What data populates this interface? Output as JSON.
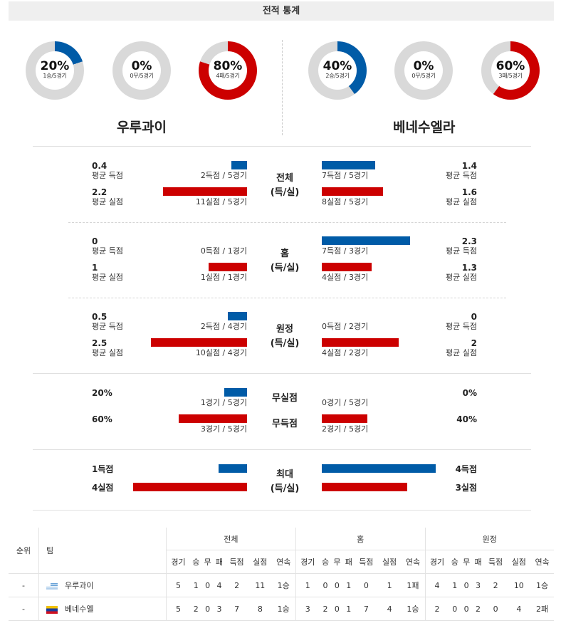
{
  "header": {
    "title": "전적 통계"
  },
  "colors": {
    "blue": "#005ba7",
    "red": "#cc0000",
    "grey": "#d9d9d9"
  },
  "donuts": {
    "home": [
      {
        "pct": "20%",
        "sub": "1승/5경기",
        "fraction": 0.2,
        "color": "blue"
      },
      {
        "pct": "0%",
        "sub": "0무/5경기",
        "fraction": 0,
        "color": "grey"
      },
      {
        "pct": "80%",
        "sub": "4패/5경기",
        "fraction": 0.8,
        "color": "red"
      }
    ],
    "away": [
      {
        "pct": "40%",
        "sub": "2승/5경기",
        "fraction": 0.4,
        "color": "blue"
      },
      {
        "pct": "0%",
        "sub": "0무/5경기",
        "fraction": 0,
        "color": "grey"
      },
      {
        "pct": "60%",
        "sub": "3패/5경기",
        "fraction": 0.6,
        "color": "red"
      }
    ]
  },
  "teams": {
    "home": "우루과이",
    "away": "베네수엘라"
  },
  "labels": {
    "avg_scored": "평균 득점",
    "avg_conceded": "평균 실점"
  },
  "sections": {
    "overall": {
      "center": [
        "전체",
        "(득/실)"
      ],
      "home": {
        "scored": "0.4",
        "conceded": "2.2",
        "scored_detail": "2득점 / 5경기",
        "conceded_detail": "11실점 / 5경기",
        "scored_ratio": 0.4,
        "conceded_ratio": 2.2
      },
      "away": {
        "scored": "1.4",
        "conceded": "1.6",
        "scored_detail": "7득점 / 5경기",
        "conceded_detail": "8실점 / 5경기",
        "scored_ratio": 1.4,
        "conceded_ratio": 1.6
      }
    },
    "home_games": {
      "center": [
        "홈",
        "(득/실)"
      ],
      "home": {
        "scored": "0",
        "conceded": "1",
        "scored_detail": "0득점 / 1경기",
        "conceded_detail": "1실점 / 1경기",
        "scored_ratio": 0,
        "conceded_ratio": 1
      },
      "away": {
        "scored": "2.3",
        "conceded": "1.3",
        "scored_detail": "7득점 / 3경기",
        "conceded_detail": "4실점 / 3경기",
        "scored_ratio": 2.3,
        "conceded_ratio": 1.3
      }
    },
    "away_games": {
      "center": [
        "원정",
        "(득/실)"
      ],
      "home": {
        "scored": "0.5",
        "conceded": "2.5",
        "scored_detail": "2득점 / 4경기",
        "conceded_detail": "10실점 / 4경기",
        "scored_ratio": 0.5,
        "conceded_ratio": 2.5
      },
      "away": {
        "scored": "0",
        "conceded": "2",
        "scored_detail": "0득점 / 2경기",
        "conceded_detail": "4실점 / 2경기",
        "scored_ratio": 0,
        "conceded_ratio": 2
      }
    },
    "clean": {
      "center1": "무실점",
      "center2": "무득점",
      "home": {
        "clean_pct": "20%",
        "noscore_pct": "60%",
        "clean_detail": "1경기 / 5경기",
        "noscore_detail": "3경기 / 5경기",
        "clean_ratio": 0.2,
        "noscore_ratio": 0.6
      },
      "away": {
        "clean_pct": "0%",
        "noscore_pct": "40%",
        "clean_detail": "0경기 / 5경기",
        "noscore_detail": "2경기 / 5경기",
        "clean_ratio": 0,
        "noscore_ratio": 0.4
      }
    },
    "max": {
      "center": [
        "최대",
        "(득/실)"
      ],
      "home": {
        "scored": "1득점",
        "conceded": "4실점",
        "scored_ratio": 1,
        "conceded_ratio": 4
      },
      "away": {
        "scored": "4득점",
        "conceded": "3실점",
        "scored_ratio": 4,
        "conceded_ratio": 3
      }
    }
  },
  "table": {
    "col_rank": "순위",
    "col_team": "팀",
    "groups": [
      "전체",
      "홈",
      "원정"
    ],
    "sub_headers": [
      "경기",
      "승",
      "무",
      "패",
      "득점",
      "실점",
      "연속"
    ],
    "rows": [
      {
        "rank": "-",
        "team": "우루과이",
        "flag": "uruguay-flag",
        "overall": [
          "5",
          "1",
          "0",
          "4",
          "2",
          "11",
          "1승"
        ],
        "home": [
          "1",
          "0",
          "0",
          "1",
          "0",
          "1",
          "1패"
        ],
        "away": [
          "4",
          "1",
          "0",
          "3",
          "2",
          "10",
          "1승"
        ]
      },
      {
        "rank": "-",
        "team": "베네수엘",
        "flag": "venezuela-flag",
        "overall": [
          "5",
          "2",
          "0",
          "3",
          "7",
          "8",
          "1승"
        ],
        "home": [
          "3",
          "2",
          "0",
          "1",
          "7",
          "4",
          "1승"
        ],
        "away": [
          "2",
          "0",
          "0",
          "2",
          "0",
          "4",
          "2패"
        ]
      }
    ]
  }
}
